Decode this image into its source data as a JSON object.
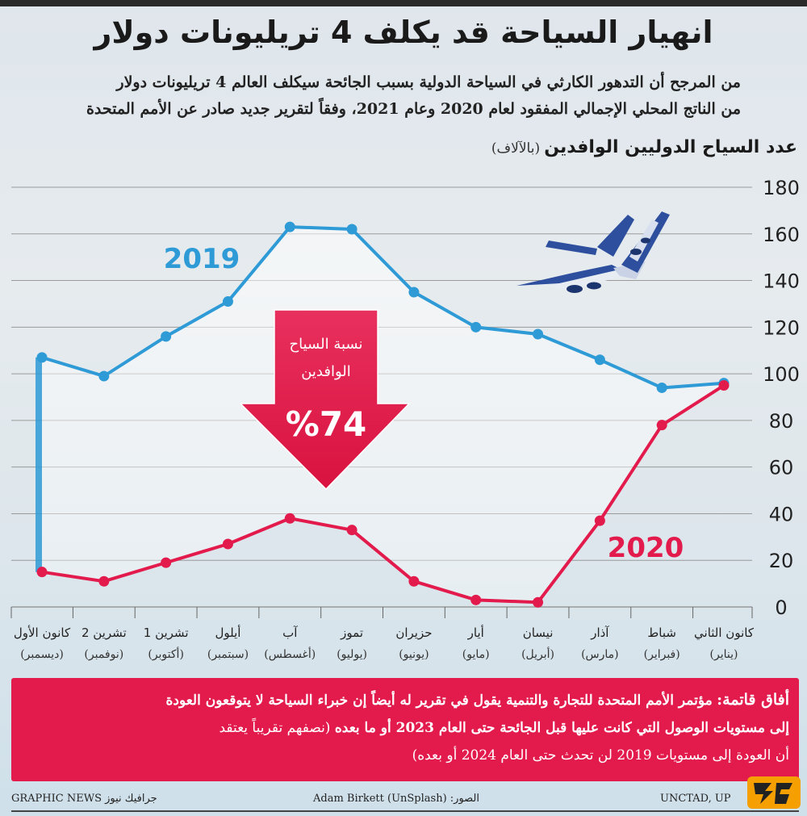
{
  "header": {
    "title": "انهيار السياحة قد يكلف 4 تريليونات دولار",
    "subtitle_line1": "من المرجح أن التدهور الكارثي في السياحة الدولية بسبب الجائحة سيكلف العالم 4 تريليونات دولار",
    "subtitle_line2": "من الناتج المحلي الإجمالي المفقود لعام 2020 وعام 2021، وفقاً لتقرير جديد صادر عن الأمم المتحدة"
  },
  "axis_title": {
    "main": "عدد السياح الدوليين الوافدين",
    "unit": "(بالآلاف)"
  },
  "arrow": {
    "label_line1": "نسبة السياح",
    "label_line2": "الوافدين",
    "value": "%74"
  },
  "colors": {
    "series_2019": "#2e9ad6",
    "series_2020": "#e31b4d",
    "grid": "#9a9a9a",
    "note_bg": "#e31b4d"
  },
  "chart_data": {
    "type": "line",
    "categories": [
      [
        "كانون الأول",
        "(ديسمبر)"
      ],
      [
        "تشرين 2",
        "(نوفمبر)"
      ],
      [
        "تشرين 1",
        "(أكتوبر)"
      ],
      [
        "أيلول",
        "(سبتمبر)"
      ],
      [
        "آب",
        "(أغسطس)"
      ],
      [
        "تموز",
        "(يوليو)"
      ],
      [
        "حزيران",
        "(يونيو)"
      ],
      [
        "أيار",
        "(مايو)"
      ],
      [
        "نيسان",
        "(أبريل)"
      ],
      [
        "آذار",
        "(مارس)"
      ],
      [
        "شباط",
        "(فبراير)"
      ],
      [
        "كانون الثاني",
        "(يناير)"
      ]
    ],
    "series": [
      {
        "name": "2019",
        "values": [
          107,
          99,
          116,
          131,
          163,
          162,
          135,
          120,
          117,
          106,
          94,
          96
        ]
      },
      {
        "name": "2020",
        "values": [
          15,
          11,
          19,
          27,
          38,
          33,
          11,
          3,
          2,
          37,
          78,
          95
        ]
      }
    ],
    "ylim": [
      0,
      180
    ],
    "yticks": [
      0,
      20,
      40,
      60,
      80,
      100,
      120,
      140,
      160,
      180
    ],
    "grid": true,
    "y_axis_side": "right"
  },
  "note": {
    "heading": "أفاق قاتمة:",
    "line1_rest": "مؤتمر الأمم المتحدة للتجارة والتنمية يقول في تقرير له أيضاً إن خبراء السياحة لا يتوقعون العودة",
    "line2_bold": "إلى مستويات الوصول التي كانت عليها قبل الجائحة حتى العام 2023 أو ما بعده",
    "line2_rest": "(نصفهم تقريباً يعتقد",
    "line3": "أن العودة إلى مستويات 2019 لن تحدث حتى العام 2024 أو بعده)"
  },
  "footer": {
    "left": "GRAPHIC NEWS جرافيك نيوز",
    "middle": "الصور: Adam Birkett (UnSplash)",
    "right": "UNCTAD, UP"
  }
}
